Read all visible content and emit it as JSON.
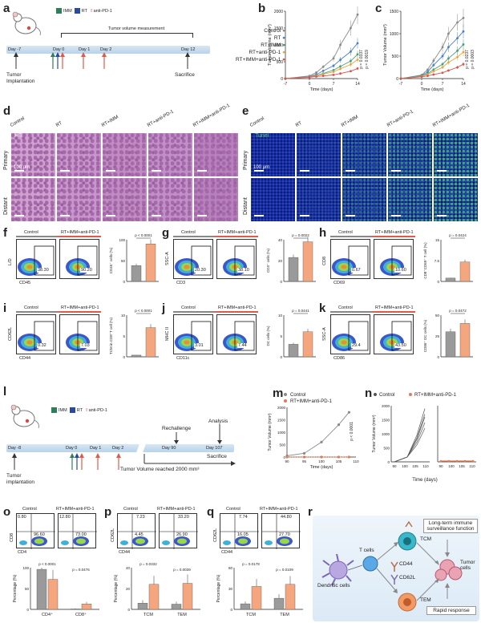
{
  "panels": {
    "a": "a",
    "b": "b",
    "c": "c",
    "d": "d",
    "e": "e",
    "f": "f",
    "g": "g",
    "h": "h",
    "i": "i",
    "j": "j",
    "k": "k",
    "l": "l",
    "m": "m",
    "n": "n",
    "o": "o",
    "p": "p",
    "q": "q",
    "r": "r"
  },
  "legend_a": {
    "imm": "IMM",
    "rt": "RT",
    "apd1": "anti-PD-1"
  },
  "colors": {
    "imm": "#2e7d5b",
    "rt": "#2a4aa0",
    "apd1": "#e05a4a",
    "control": "#888888",
    "treat": "#e07a55",
    "timeline": "#c5dbef"
  },
  "timeline_a": {
    "measure": "Tumor volume measurement",
    "days": [
      "Day -7",
      "Day 0",
      "Day 1",
      "Day 2",
      "Day 12"
    ],
    "implant": "Tumor\nImplantation",
    "sacrifice": "Sacrifice"
  },
  "timeline_l": {
    "days": [
      "Day -8",
      "Day 0",
      "Day 1",
      "Day 2",
      "Day 90",
      "Day 107"
    ],
    "implant": "Tumor\nimplantation",
    "rechallenge": "Rechallenge",
    "analysis": "Analysis",
    "sacrifice": "Sacrifice",
    "volume": "Tumor Volume reached 2000 mm³"
  },
  "legend_b": [
    "Control",
    "RT",
    "RT+IMM",
    "RT+anti-PD-1",
    "RT+IMM+anti-PD-1"
  ],
  "pvals_b": [
    "p = 0.0337",
    "p = 0.0019"
  ],
  "pvals_c": [
    "p = 0.0237",
    "p = 0.0003"
  ],
  "groups_de": [
    "Control",
    "RT",
    "RT+IMM",
    "RT+anti-PD-1",
    "RT+IMM+anti-PD-1"
  ],
  "d_labels": {
    "stain": "HE",
    "scale": "100 μm",
    "rows": [
      "Primary",
      "Distant"
    ]
  },
  "e_labels": {
    "stain": "Tunel",
    "scale": "100 μm",
    "rows": [
      "Primary",
      "Distant"
    ]
  },
  "flow": {
    "ctrl": "Control",
    "trt": "RT+IMM+anti-PD-1",
    "f": {
      "y": "L/D",
      "x": "CD45",
      "v1": "38.30",
      "v2": "90.20",
      "ylabel": "CD45⁺ cells (%)",
      "p": "p < 0.0001"
    },
    "g": {
      "y": "SSC-A",
      "x": "CD3",
      "v1": "20.30",
      "v2": "38.10",
      "ylabel": "CD3⁺ cells (%)",
      "p": "p = 0.0022"
    },
    "h": {
      "y": "CD8",
      "x": "CD69",
      "v1": "0.67",
      "v2": "10.60",
      "ylabel": "CD8⁺CD69⁺ T cell (%)",
      "p": "p = 0.0424"
    },
    "i": {
      "y": "CD62L",
      "x": "CD44",
      "v1": "0.32",
      "v2": "7.03",
      "ylabel": "TCM in CD8⁺T cell (%)",
      "p": "p < 0.0001"
    },
    "j": {
      "y": "MHC II",
      "x": "CD11c",
      "v1": "3.01",
      "v2": "7.44",
      "ylabel": "DC cells (%)",
      "p": "p = 0.0441"
    },
    "k": {
      "y": "SSC-A",
      "x": "CD86",
      "v1": "29.4",
      "v2": "43.50",
      "ylabel": "CD86⁺ DC cells (%)",
      "p": "p = 0.0472"
    }
  },
  "m": {
    "legend": [
      "Control",
      "RT+IMM+anti-PD-1"
    ],
    "xlabel": "Time (days)",
    "ylabel": "Tumor Volume (mm³)",
    "p": "p < 0.0001",
    "xticks": [
      "90",
      "95",
      "100",
      "105",
      "110"
    ]
  },
  "n": {
    "legend": [
      "Control",
      "RT+IMM+anti-PD-1"
    ],
    "xlabel": "Time (days)",
    "ylabel": "Tumor Volume (mm³)",
    "xticks1": [
      "90",
      "100",
      "105",
      "110"
    ],
    "xticks2": [
      "90",
      "100",
      "105",
      "110"
    ]
  },
  "o": {
    "ctrl": "Control",
    "trt": "RT+IMM+anti-PD-1",
    "y": "CD8",
    "x": "CD4",
    "c1": "0.80",
    "c2": "96.60",
    "t1": "12.80",
    "t2": "73.00",
    "ylabel": "Percentage (%)",
    "p1": "p < 0.0001",
    "p2": "p = 0.0476",
    "cats": [
      "CD4⁺",
      "CD8⁺"
    ]
  },
  "p": {
    "ctrl": "Control",
    "trt": "RT+IMM+anti-PD-1",
    "y": "CD62L",
    "x": "CD44",
    "c1": "7.23",
    "c2": "4.45",
    "t1": "33.20",
    "t2": "26.90",
    "ylabel": "Percentage (%)",
    "p1": "p = 0.0332",
    "p2": "p = 0.0039",
    "cats": [
      "TCM",
      "TEM"
    ]
  },
  "q": {
    "ctrl": "Control",
    "trt": "RT+IMM+anti-PD-1",
    "y": "CD62L",
    "x": "CD44",
    "c1": "7.74",
    "c2": "16.05",
    "t1": "44.80",
    "t2": "27.70",
    "ylabel": "Percentage (%)",
    "p1": "p = 0.0178",
    "p2": "p = 0.0109",
    "cats": [
      "TCM",
      "TEM"
    ]
  },
  "r": {
    "tcells": "T cells",
    "dc": "Dendritic cells",
    "tcm": "TCM",
    "tem": "TEM",
    "cd44": "CD44",
    "cd62l": "CD62L",
    "longterm": "Long-term immune surveillance function",
    "tumor": "Tumor cells",
    "rapid": "Rapid response"
  },
  "chart_data": [
    {
      "type": "line",
      "title": "b",
      "xlabel": "Time (days)",
      "ylabel": "Tumor Volume (mm³)",
      "x": [
        -7,
        0,
        2,
        4,
        7,
        9,
        12,
        14
      ],
      "xlim": [
        -7,
        14
      ],
      "ylim": [
        0,
        2000
      ],
      "series": [
        {
          "name": "Control",
          "values": [
            0,
            80,
            180,
            350,
            600,
            1000,
            1500,
            1900
          ]
        },
        {
          "name": "RT",
          "values": [
            0,
            60,
            120,
            230,
            380,
            560,
            800,
            1050
          ]
        },
        {
          "name": "RT+IMM",
          "values": [
            0,
            50,
            90,
            150,
            250,
            360,
            520,
            720
          ]
        },
        {
          "name": "RT+anti-PD-1",
          "values": [
            0,
            50,
            80,
            130,
            200,
            290,
            420,
            560
          ]
        },
        {
          "name": "RT+IMM+anti-PD-1",
          "values": [
            0,
            40,
            60,
            80,
            110,
            150,
            220,
            300
          ]
        }
      ]
    },
    {
      "type": "line",
      "title": "c",
      "xlabel": "Time (days)",
      "ylabel": "Tumor Volume (mm³)",
      "x": [
        -7,
        0,
        2,
        4,
        7,
        9,
        12,
        14
      ],
      "xlim": [
        -7,
        14
      ],
      "ylim": [
        0,
        1500
      ],
      "series": [
        {
          "name": "Control",
          "values": [
            0,
            80,
            200,
            400,
            700,
            1000,
            1250,
            1350
          ]
        },
        {
          "name": "RT",
          "values": [
            0,
            70,
            150,
            300,
            500,
            700,
            900,
            1050
          ]
        },
        {
          "name": "RT+IMM",
          "values": [
            0,
            60,
            110,
            200,
            320,
            450,
            620,
            760
          ]
        },
        {
          "name": "RT+anti-PD-1",
          "values": [
            0,
            50,
            90,
            160,
            250,
            360,
            480,
            590
          ]
        },
        {
          "name": "RT+IMM+anti-PD-1",
          "values": [
            0,
            40,
            60,
            90,
            130,
            180,
            250,
            320
          ]
        }
      ]
    },
    {
      "type": "bar",
      "title": "f",
      "categories": [
        "Control",
        "RT+IMM+anti-PD-1"
      ],
      "values": [
        38,
        90
      ],
      "ylim": [
        0,
        100
      ]
    },
    {
      "type": "bar",
      "title": "g",
      "categories": [
        "Control",
        "RT+IMM+anti-PD-1"
      ],
      "values": [
        23,
        38
      ],
      "ylim": [
        0,
        40
      ]
    },
    {
      "type": "bar",
      "title": "h",
      "categories": [
        "Control",
        "RT+IMM+anti-PD-1"
      ],
      "values": [
        1.2,
        7
      ],
      "ylim": [
        0,
        15
      ]
    },
    {
      "type": "bar",
      "title": "i",
      "categories": [
        "Control",
        "RT+IMM+anti-PD-1"
      ],
      "values": [
        0.4,
        7
      ],
      "ylim": [
        0,
        10
      ]
    },
    {
      "type": "bar",
      "title": "j",
      "categories": [
        "Control",
        "RT+IMM+anti-PD-1"
      ],
      "values": [
        3,
        6
      ],
      "ylim": [
        0,
        10
      ]
    },
    {
      "type": "bar",
      "title": "k",
      "categories": [
        "Control",
        "RT+IMM+anti-PD-1"
      ],
      "values": [
        30,
        40
      ],
      "ylim": [
        0,
        50
      ]
    },
    {
      "type": "line",
      "title": "m",
      "x": [
        90,
        95,
        100,
        105,
        108
      ],
      "xlim": [
        90,
        110
      ],
      "ylim": [
        0,
        2000
      ],
      "series": [
        {
          "name": "Control",
          "values": [
            50,
            150,
            600,
            1300,
            1800
          ]
        },
        {
          "name": "RT+IMM+anti-PD-1",
          "values": [
            0,
            0,
            0,
            0,
            0
          ]
        }
      ]
    },
    {
      "type": "bar",
      "title": "o",
      "categories": [
        "CD4⁺",
        "CD8⁺"
      ],
      "series": [
        {
          "name": "Control",
          "values": [
            96,
            1
          ]
        },
        {
          "name": "RT+IMM+anti-PD-1",
          "values": [
            72,
            13
          ]
        }
      ],
      "ylim": [
        0,
        100
      ]
    },
    {
      "type": "bar",
      "title": "p",
      "categories": [
        "TCM",
        "TEM"
      ],
      "series": [
        {
          "name": "Control",
          "values": [
            6,
            5
          ]
        },
        {
          "name": "RT+IMM+anti-PD-1",
          "values": [
            24,
            25
          ]
        }
      ],
      "ylim": [
        0,
        40
      ]
    },
    {
      "type": "bar",
      "title": "q",
      "categories": [
        "TCM",
        "TEM"
      ],
      "series": [
        {
          "name": "Control",
          "values": [
            8,
            16
          ]
        },
        {
          "name": "RT+IMM+anti-PD-1",
          "values": [
            33,
            36
          ]
        }
      ],
      "ylim": [
        0,
        60
      ]
    }
  ]
}
